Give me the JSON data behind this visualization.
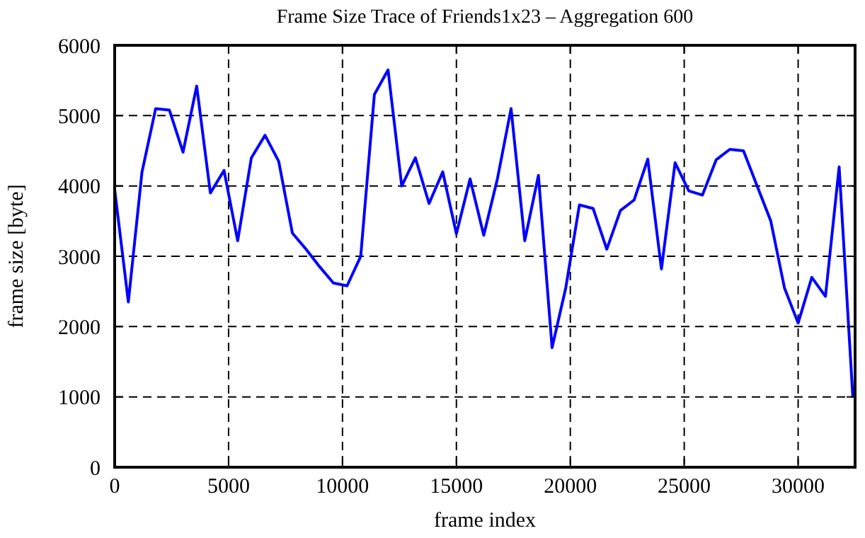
{
  "chart_data": {
    "type": "line",
    "title": "Frame Size Trace of Friends1x23 – Aggregation 600",
    "xlabel": "frame index",
    "ylabel": "frame size [byte]",
    "x": [
      0,
      600,
      1200,
      1800,
      2400,
      3000,
      3600,
      4200,
      4800,
      5400,
      6000,
      6600,
      7200,
      7800,
      8400,
      9000,
      9600,
      10200,
      10800,
      11400,
      12000,
      12600,
      13200,
      13800,
      14400,
      15000,
      15600,
      16200,
      16800,
      17400,
      18000,
      18600,
      19200,
      19800,
      20400,
      21000,
      21600,
      22200,
      22800,
      23400,
      24000,
      24600,
      25200,
      25800,
      26400,
      27000,
      27600,
      28200,
      28800,
      29400,
      30000,
      30600,
      31200,
      31800,
      32400
    ],
    "series": [
      {
        "color": "#0000ff",
        "values": [
          3950,
          2350,
          4200,
          5100,
          5080,
          4480,
          5420,
          3900,
          4220,
          3220,
          4400,
          4720,
          4350,
          3330,
          3100,
          2850,
          2620,
          2580,
          3000,
          5300,
          5650,
          4000,
          4400,
          3750,
          4200,
          3320,
          4100,
          3300,
          4100,
          5100,
          3220,
          4150,
          1700,
          2550,
          3730,
          3680,
          3100,
          3650,
          3800,
          4380,
          2820,
          4330,
          3930,
          3870,
          4370,
          4520,
          4500,
          4000,
          3500,
          2550,
          2050,
          2700,
          2430,
          4270,
          1000
        ]
      }
    ],
    "xlim": [
      0,
      32500
    ],
    "xticks": [
      0,
      5000,
      10000,
      15000,
      20000,
      25000,
      30000
    ],
    "ylim": [
      0,
      6000
    ],
    "yticks": [
      0,
      1000,
      2000,
      3000,
      4000,
      5000,
      6000
    ],
    "grid": true,
    "line_style": "solid",
    "marker": "none"
  }
}
